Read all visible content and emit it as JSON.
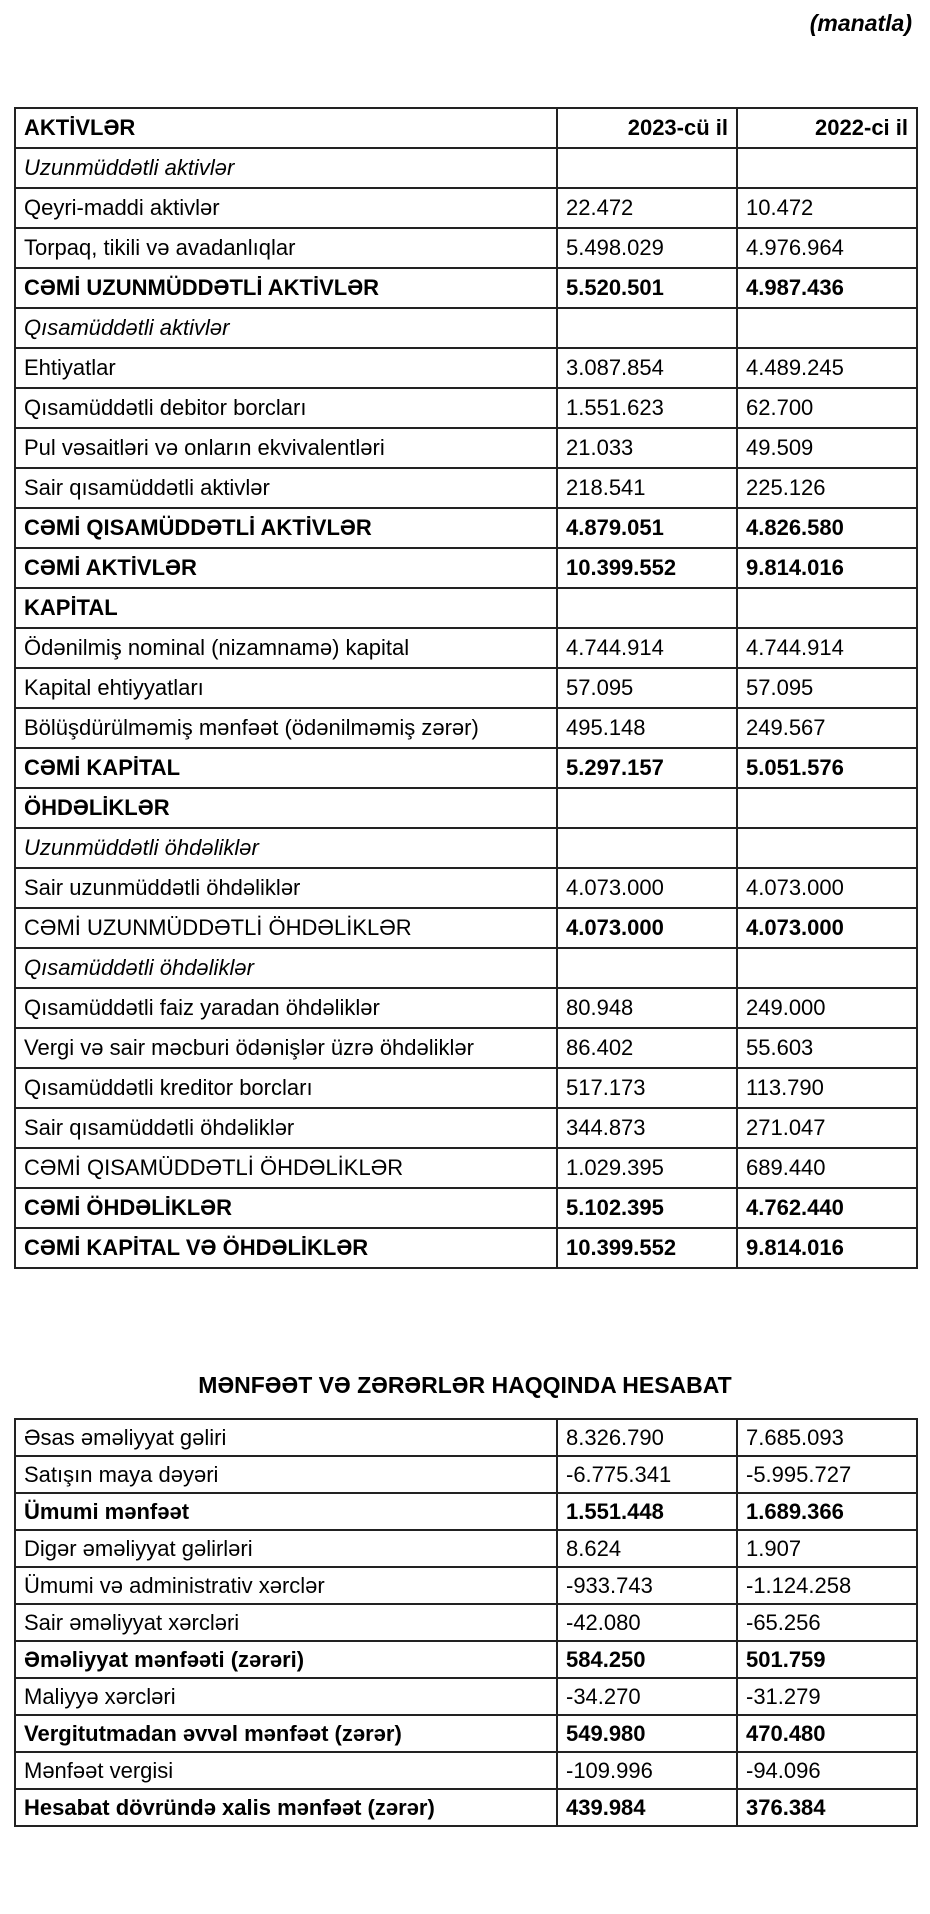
{
  "unit_note": "(manatla)",
  "balance": {
    "header": {
      "label": "AKTİVLƏR",
      "col1": "2023-cü il",
      "col2": "2022-ci il"
    },
    "rows": [
      {
        "label": "Uzunmüddətli aktivlər",
        "v1": "",
        "v2": "",
        "style": "italic"
      },
      {
        "label": "Qeyri-maddi aktivlər",
        "v1": "22.472",
        "v2": "10.472",
        "style": "normal"
      },
      {
        "label": "Torpaq, tikili və avadanlıqlar",
        "v1": "5.498.029",
        "v2": "4.976.964",
        "style": "normal"
      },
      {
        "label": "CƏMİ UZUNMÜDDƏTLİ AKTİVLƏR",
        "v1": "5.520.501",
        "v2": "4.987.436",
        "style": "bold-label"
      },
      {
        "label": "Qısamüddətli aktivlər",
        "v1": "",
        "v2": "",
        "style": "italic"
      },
      {
        "label": "Ehtiyatlar",
        "v1": "3.087.854",
        "v2": "4.489.245",
        "style": "normal"
      },
      {
        "label": "Qısamüddətli debitor borcları",
        "v1": "1.551.623",
        "v2": "62.700",
        "style": "normal"
      },
      {
        "label": "Pul vəsaitləri və onların ekvivalentləri",
        "v1": "21.033",
        "v2": "49.509",
        "style": "normal"
      },
      {
        "label": "Sair qısamüddətli aktivlər",
        "v1": "218.541",
        "v2": "225.126",
        "style": "normal"
      },
      {
        "label": "CƏMİ QISAMÜDDƏTLİ AKTİVLƏR",
        "v1": "4.879.051",
        "v2": "4.826.580",
        "style": "bold-label"
      },
      {
        "label": "CƏMİ AKTİVLƏR",
        "v1": "10.399.552",
        "v2": "9.814.016",
        "style": "bold"
      },
      {
        "label": "KAPİTAL",
        "v1": "",
        "v2": "",
        "style": "bold"
      },
      {
        "label": "Ödənilmiş nominal (nizamnamə) kapital",
        "v1": "4.744.914",
        "v2": "4.744.914",
        "style": "normal"
      },
      {
        "label": "Kapital ehtiyyatları",
        "v1": "57.095",
        "v2": "57.095",
        "style": "normal"
      },
      {
        "label": "Bölüşdürülməmiş mənfəət (ödənilməmiş zərər)",
        "v1": "495.148",
        "v2": "249.567",
        "style": "normal"
      },
      {
        "label": "CƏMİ KAPİTAL",
        "v1": "5.297.157",
        "v2": "5.051.576",
        "style": "bold"
      },
      {
        "label": "ÖHDƏLİKLƏR",
        "v1": "",
        "v2": "",
        "style": "bold"
      },
      {
        "label": "Uzunmüddətli öhdəliklər",
        "v1": "",
        "v2": "",
        "style": "italic"
      },
      {
        "label": "Sair uzunmüddətli öhdəliklər",
        "v1": "4.073.000",
        "v2": "4.073.000",
        "style": "normal"
      },
      {
        "label": "CƏMİ UZUNMÜDDƏTLİ ÖHDƏLİKLƏR",
        "v1": "4.073.000",
        "v2": "4.073.000",
        "style": "bold-values"
      },
      {
        "label": "Qısamüddətli öhdəliklər",
        "v1": "",
        "v2": "",
        "style": "italic"
      },
      {
        "label": "Qısamüddətli faiz yaradan öhdəliklər",
        "v1": "80.948",
        "v2": "249.000",
        "style": "normal"
      },
      {
        "label": "Vergi və sair məcburi ödənişlər üzrə öhdəliklər",
        "v1": "86.402",
        "v2": "55.603",
        "style": "normal"
      },
      {
        "label": "Qısamüddətli kreditor borcları",
        "v1": "517.173",
        "v2": "113.790",
        "style": "normal"
      },
      {
        "label": "Sair qısamüddətli öhdəliklər",
        "v1": "344.873",
        "v2": "271.047",
        "style": "normal"
      },
      {
        "label": "CƏMİ QISAMÜDDƏTLİ ÖHDƏLİKLƏR",
        "v1": "1.029.395",
        "v2": "689.440",
        "style": "normal"
      },
      {
        "label": "CƏMİ ÖHDƏLİKLƏR",
        "v1": "5.102.395",
        "v2": "4.762.440",
        "style": "bold"
      },
      {
        "label": "CƏMİ KAPİTAL VƏ ÖHDƏLİKLƏR",
        "v1": "10.399.552",
        "v2": "9.814.016",
        "style": "bold"
      }
    ]
  },
  "income": {
    "title": "MƏNFƏƏT VƏ ZƏRƏRLƏR HAQQINDA HESABAT",
    "rows": [
      {
        "label": "Əsas əməliyyat gəliri",
        "v1": "8.326.790",
        "v2": "7.685.093",
        "style": "normal"
      },
      {
        "label": "Satışın maya dəyəri",
        "v1": "-6.775.341",
        "v2": "-5.995.727",
        "style": "normal"
      },
      {
        "label": "Ümumi mənfəət",
        "v1": "1.551.448",
        "v2": "1.689.366",
        "style": "bold"
      },
      {
        "label": "Digər əməliyyat gəlirləri",
        "v1": "8.624",
        "v2": "1.907",
        "style": "normal"
      },
      {
        "label": "Ümumi və administrativ xərclər",
        "v1": "-933.743",
        "v2": "-1.124.258",
        "style": "normal"
      },
      {
        "label": "Sair əməliyyat xərcləri",
        "v1": "-42.080",
        "v2": "-65.256",
        "style": "normal"
      },
      {
        "label": "Əməliyyat mənfəəti (zərəri)",
        "v1": "584.250",
        "v2": "501.759",
        "style": "bold"
      },
      {
        "label": "Maliyyə xərcləri",
        "v1": "-34.270",
        "v2": "-31.279",
        "style": "normal"
      },
      {
        "label": "Vergitutmadan əvvəl mənfəət (zərər)",
        "v1": "549.980",
        "v2": "470.480",
        "style": "bold"
      },
      {
        "label": "Mənfəət vergisi",
        "v1": "-109.996",
        "v2": "-94.096",
        "style": "normal"
      },
      {
        "label": "Hesabat dövründə xalis mənfəət (zərər)",
        "v1": "439.984",
        "v2": "376.384",
        "style": "bold"
      }
    ]
  }
}
